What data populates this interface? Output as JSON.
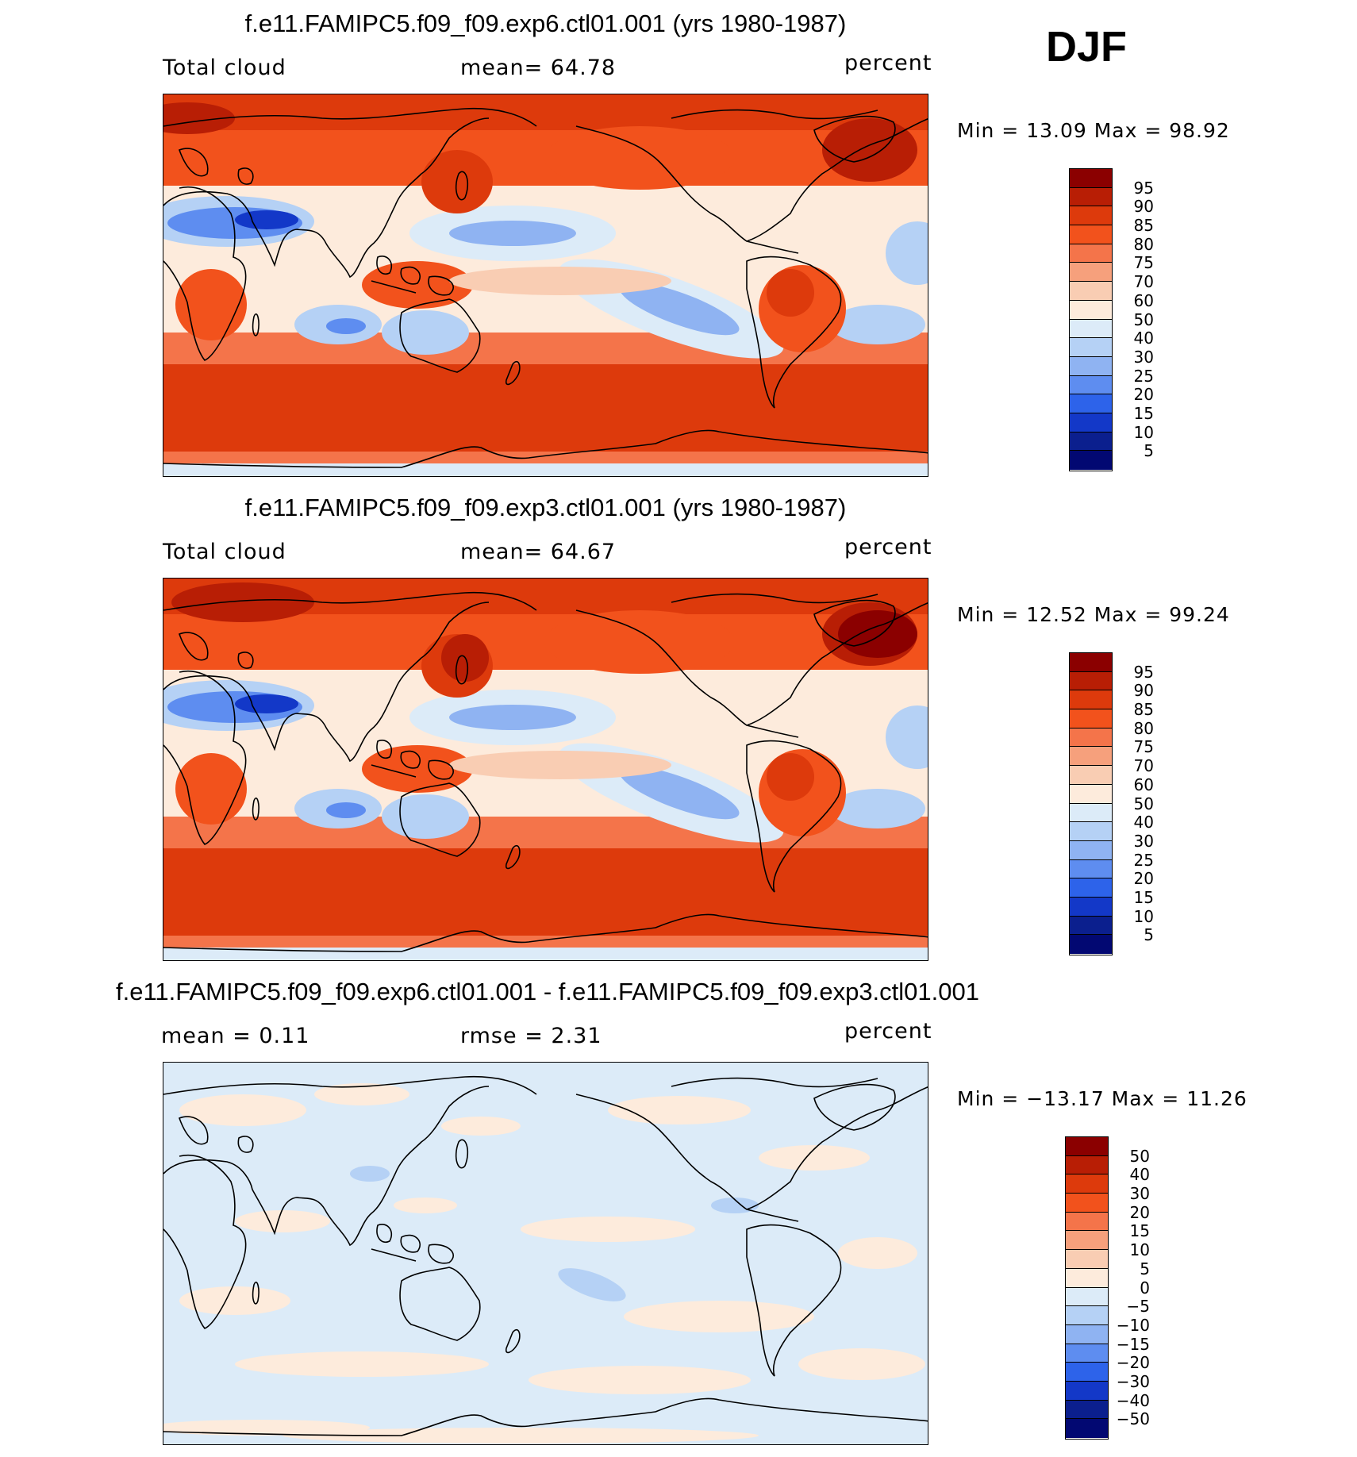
{
  "season": "DJF",
  "panels": [
    {
      "title": "f.e11.FAMIPC5.f09_f09.exp6.ctl01.001 (yrs 1980-1987)",
      "left_label": "Total cloud",
      "center_label": "mean=   64.78",
      "right_label": "percent",
      "minmax": "Min  =   13.09  Max  =   98.92",
      "scale": "abs"
    },
    {
      "title": "f.e11.FAMIPC5.f09_f09.exp3.ctl01.001 (yrs 1980-1987)",
      "left_label": "Total cloud",
      "center_label": "mean=   64.67",
      "right_label": "percent",
      "minmax": "Min  =   12.52  Max  =   99.24",
      "scale": "abs"
    },
    {
      "title": "f.e11.FAMIPC5.f09_f09.exp6.ctl01.001 - f.e11.FAMIPC5.f09_f09.exp3.ctl01.001",
      "left_label": "mean  =     0.11",
      "center_label": "rmse  =     2.31",
      "right_label": "percent",
      "minmax": "Min  = −13.17  Max  =    11.26",
      "scale": "diff"
    }
  ],
  "chart_data": [
    {
      "type": "heatmap",
      "title": "f.e11.FAMIPC5.f09_f09.exp6.ctl01.001 (yrs 1980-1987)",
      "variable": "Total cloud",
      "units": "percent",
      "mean": 64.78,
      "min": 13.09,
      "max": 98.92,
      "colorbar_levels": [
        95,
        90,
        85,
        80,
        75,
        70,
        60,
        50,
        40,
        30,
        25,
        20,
        15,
        10,
        5
      ]
    },
    {
      "type": "heatmap",
      "title": "f.e11.FAMIPC5.f09_f09.exp3.ctl01.001 (yrs 1980-1987)",
      "variable": "Total cloud",
      "units": "percent",
      "mean": 64.67,
      "min": 12.52,
      "max": 99.24,
      "colorbar_levels": [
        95,
        90,
        85,
        80,
        75,
        70,
        60,
        50,
        40,
        30,
        25,
        20,
        15,
        10,
        5
      ]
    },
    {
      "type": "heatmap",
      "title": "f.e11.FAMIPC5.f09_f09.exp6.ctl01.001 - f.e11.FAMIPC5.f09_f09.exp3.ctl01.001",
      "units": "percent",
      "mean": 0.11,
      "rmse": 2.31,
      "min": -13.17,
      "max": 11.26,
      "colorbar_levels": [
        50,
        40,
        30,
        20,
        15,
        10,
        5,
        0,
        -5,
        -10,
        -15,
        -20,
        -30,
        -40,
        -50
      ]
    }
  ],
  "colorbar": {
    "abs_labels": [
      "95",
      "90",
      "85",
      "80",
      "75",
      "70",
      "60",
      "50",
      "40",
      "30",
      "25",
      "20",
      "15",
      "10",
      "5"
    ],
    "diff_labels": [
      "50",
      "40",
      "30",
      "20",
      "15",
      "10",
      "5",
      "0",
      "−5",
      "−10",
      "−15",
      "−20",
      "−30",
      "−40",
      "−50"
    ],
    "colors": [
      "#8b0000",
      "#b81e05",
      "#dd3a0c",
      "#f2521c",
      "#f4744a",
      "#f6a07c",
      "#f9cdb3",
      "#fdebdc",
      "#dcebf8",
      "#b5d1f5",
      "#8fb3f2",
      "#5e8df0",
      "#2d63ea",
      "#1338c8",
      "#0b1f8e",
      "#020872"
    ]
  }
}
